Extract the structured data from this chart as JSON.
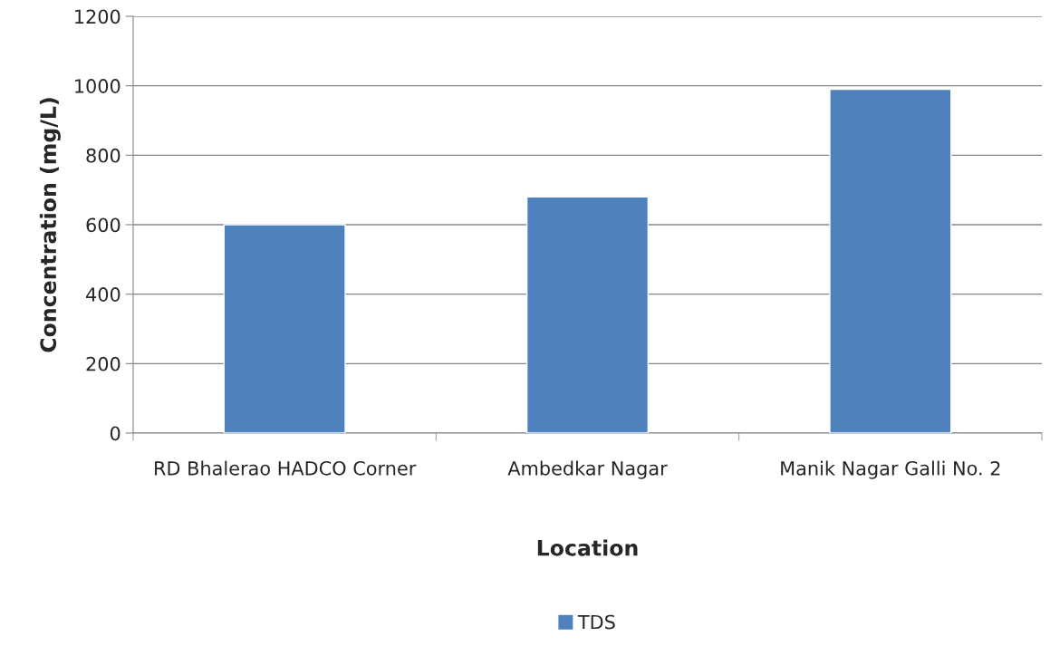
{
  "chart_data": {
    "type": "bar",
    "xlabel": "Location",
    "ylabel": "Concentration (mg/L)",
    "categories": [
      "RD Bhalerao HADCO Corner",
      "Ambedkar Nagar",
      "Manik Nagar Galli No. 2"
    ],
    "series": [
      {
        "name": "TDS",
        "color": "#4f81bd",
        "values": [
          600,
          680,
          990
        ]
      }
    ],
    "ylim": [
      0,
      1200
    ],
    "yticks": [
      0,
      200,
      400,
      600,
      800,
      1000,
      1200
    ],
    "grid": "y",
    "legend": "bottom"
  }
}
